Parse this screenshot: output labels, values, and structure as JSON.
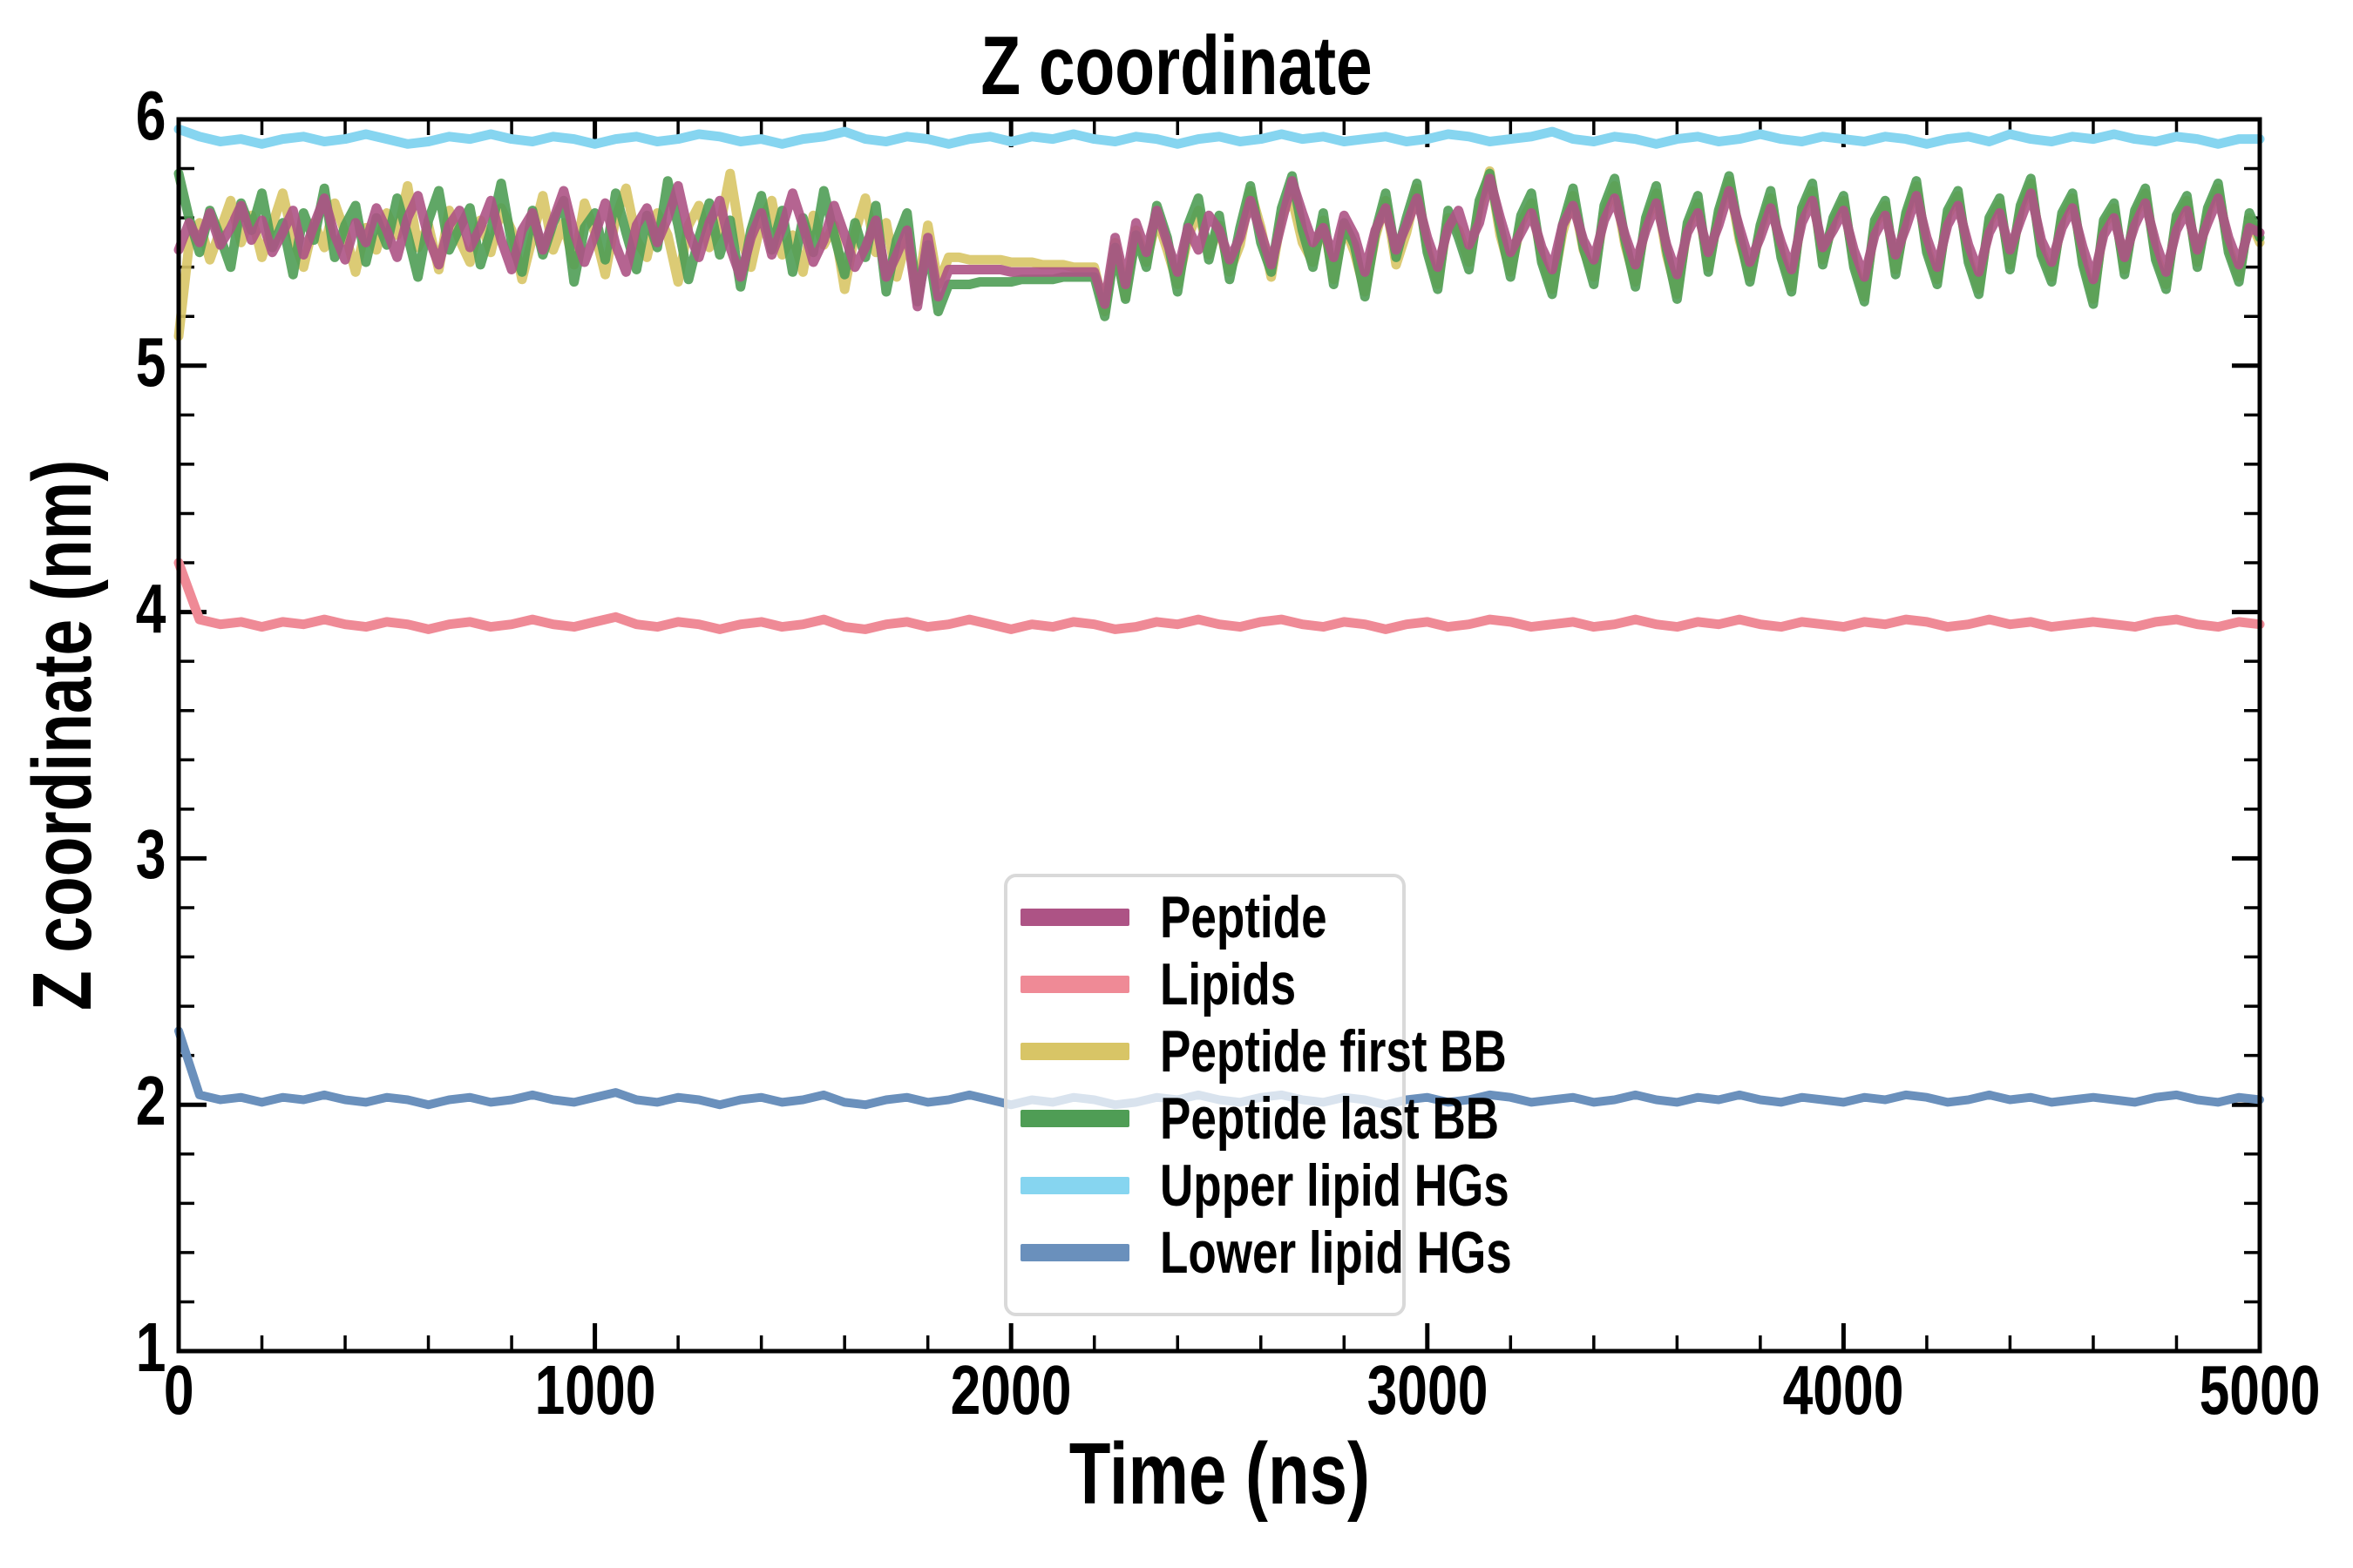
{
  "chart_data": {
    "type": "line",
    "title": "Z coordinate",
    "xlabel": "Time (ns)",
    "ylabel": "Z coordinate (nm)",
    "xlim": [
      0,
      5000
    ],
    "ylim": [
      1,
      6
    ],
    "grid": false,
    "tick_direction": "in",
    "x_major_ticks": [
      0,
      1000,
      2000,
      3000,
      4000,
      5000
    ],
    "x_tick_labels": [
      "0",
      "1000",
      "2000",
      "3000",
      "4000",
      "5000"
    ],
    "x_minor_step": 200,
    "y_major_ticks": [
      1,
      2,
      3,
      4,
      5,
      6
    ],
    "y_tick_labels": [
      "1",
      "2",
      "3",
      "4",
      "5",
      "6"
    ],
    "y_minor_step": 0.2,
    "legend_position": "lower center inside plot",
    "legend_border_color": "#d9d9d9",
    "legend_background": "rgba(255,255,255,0.75)",
    "axis_color": "#000000",
    "series": [
      {
        "name": "Peptide",
        "color": "#AD5385",
        "width": 11,
        "opacity": 0.9,
        "z": 6,
        "x_start": 0,
        "x_step": 25,
        "values": [
          5.47,
          5.58,
          5.5,
          5.62,
          5.49,
          5.56,
          5.65,
          5.51,
          5.59,
          5.46,
          5.54,
          5.63,
          5.45,
          5.57,
          5.68,
          5.53,
          5.43,
          5.58,
          5.5,
          5.64,
          5.55,
          5.44,
          5.6,
          5.69,
          5.52,
          5.41,
          5.57,
          5.63,
          5.48,
          5.56,
          5.67,
          5.51,
          5.39,
          5.55,
          5.62,
          5.47,
          5.59,
          5.71,
          5.54,
          5.42,
          5.53,
          5.66,
          5.49,
          5.38,
          5.57,
          5.64,
          5.5,
          5.6,
          5.73,
          5.54,
          5.44,
          5.58,
          5.67,
          5.48,
          5.36,
          5.52,
          5.62,
          5.45,
          5.56,
          5.7,
          5.57,
          5.42,
          5.51,
          5.65,
          5.53,
          5.4,
          5.48,
          5.59,
          5.36,
          5.45,
          5.55,
          5.24,
          5.52,
          5.28,
          5.39,
          5.39,
          5.39,
          5.39,
          5.39,
          5.39,
          5.38,
          5.38,
          5.38,
          5.38,
          5.38,
          5.38,
          5.38,
          5.38,
          5.38,
          5.25,
          5.52,
          5.33,
          5.58,
          5.46,
          5.63,
          5.5,
          5.38,
          5.56,
          5.47,
          5.61,
          5.55,
          5.43,
          5.52,
          5.67,
          5.54,
          5.41,
          5.58,
          5.75,
          5.62,
          5.5,
          5.56,
          5.44,
          5.61,
          5.53,
          5.38,
          5.55,
          5.64,
          5.47,
          5.57,
          5.68,
          5.52,
          5.4,
          5.56,
          5.63,
          5.49,
          5.58,
          5.76,
          5.6,
          5.46,
          5.54,
          5.62,
          5.48,
          5.39,
          5.57,
          5.65,
          5.51,
          5.43,
          5.59,
          5.68,
          5.53,
          5.41,
          5.55,
          5.66,
          5.49,
          5.37,
          5.54,
          5.62,
          5.46,
          5.57,
          5.71,
          5.56,
          5.42,
          5.52,
          5.64,
          5.5,
          5.39,
          5.58,
          5.67,
          5.48,
          5.55,
          5.63,
          5.47,
          5.36,
          5.53,
          5.61,
          5.45,
          5.56,
          5.69,
          5.52,
          5.4,
          5.57,
          5.65,
          5.49,
          5.38,
          5.54,
          5.62,
          5.47,
          5.59,
          5.7,
          5.51,
          5.42,
          5.56,
          5.64,
          5.48,
          5.35,
          5.53,
          5.6,
          5.44,
          5.57,
          5.66,
          5.5,
          5.38,
          5.55,
          5.63,
          5.47,
          5.58,
          5.68,
          5.52,
          5.41,
          5.56,
          5.54
        ]
      },
      {
        "name": "Lipids",
        "color": "#EF8A96",
        "width": 11,
        "opacity": 1,
        "z": 3,
        "x_start": 0,
        "x_step": 50,
        "values": [
          4.2,
          3.97,
          3.95,
          3.96,
          3.94,
          3.96,
          3.95,
          3.97,
          3.95,
          3.94,
          3.96,
          3.95,
          3.93,
          3.95,
          3.96,
          3.94,
          3.95,
          3.97,
          3.95,
          3.94,
          3.96,
          3.98,
          3.95,
          3.94,
          3.96,
          3.95,
          3.93,
          3.95,
          3.96,
          3.94,
          3.95,
          3.97,
          3.94,
          3.93,
          3.95,
          3.96,
          3.94,
          3.95,
          3.97,
          3.95,
          3.93,
          3.95,
          3.94,
          3.96,
          3.95,
          3.93,
          3.94,
          3.96,
          3.95,
          3.97,
          3.95,
          3.94,
          3.96,
          3.97,
          3.95,
          3.94,
          3.96,
          3.95,
          3.93,
          3.95,
          3.96,
          3.94,
          3.95,
          3.97,
          3.96,
          3.94,
          3.95,
          3.96,
          3.94,
          3.95,
          3.97,
          3.95,
          3.94,
          3.96,
          3.95,
          3.97,
          3.95,
          3.94,
          3.96,
          3.95,
          3.94,
          3.96,
          3.95,
          3.97,
          3.96,
          3.94,
          3.95,
          3.97,
          3.95,
          3.96,
          3.94,
          3.95,
          3.96,
          3.95,
          3.94,
          3.96,
          3.97,
          3.95,
          3.94,
          3.96,
          3.95
        ]
      },
      {
        "name": "Peptide first BB",
        "color": "#D8C566",
        "width": 11,
        "opacity": 0.9,
        "z": 4,
        "x_start": 0,
        "x_step": 25,
        "values": [
          5.12,
          5.49,
          5.58,
          5.43,
          5.55,
          5.67,
          5.5,
          5.61,
          5.44,
          5.57,
          5.7,
          5.52,
          5.4,
          5.58,
          5.48,
          5.66,
          5.54,
          5.38,
          5.56,
          5.47,
          5.62,
          5.53,
          5.73,
          5.48,
          5.57,
          5.39,
          5.63,
          5.51,
          5.42,
          5.59,
          5.46,
          5.64,
          5.55,
          5.35,
          5.52,
          5.69,
          5.47,
          5.58,
          5.41,
          5.66,
          5.54,
          5.37,
          5.6,
          5.72,
          5.51,
          5.44,
          5.62,
          5.53,
          5.34,
          5.57,
          5.65,
          5.48,
          5.56,
          5.78,
          5.52,
          5.4,
          5.59,
          5.67,
          5.45,
          5.53,
          5.38,
          5.61,
          5.49,
          5.57,
          5.31,
          5.54,
          5.68,
          5.46,
          5.58,
          5.36,
          5.52,
          5.3,
          5.57,
          5.33,
          5.44,
          5.44,
          5.43,
          5.43,
          5.43,
          5.43,
          5.42,
          5.42,
          5.42,
          5.41,
          5.41,
          5.41,
          5.4,
          5.4,
          5.4,
          5.22,
          5.5,
          5.28,
          5.55,
          5.42,
          5.6,
          5.47,
          5.33,
          5.52,
          5.63,
          5.45,
          5.57,
          5.38,
          5.49,
          5.71,
          5.56,
          5.36,
          5.61,
          5.68,
          5.5,
          5.42,
          5.59,
          5.35,
          5.57,
          5.46,
          5.3,
          5.52,
          5.67,
          5.41,
          5.54,
          5.72,
          5.48,
          5.33,
          5.6,
          5.55,
          5.42,
          5.64,
          5.79,
          5.53,
          5.38,
          5.58,
          5.66,
          5.44,
          5.31,
          5.54,
          5.69,
          5.47,
          5.36,
          5.62,
          5.73,
          5.49,
          5.34,
          5.58,
          5.7,
          5.45,
          5.29,
          5.56,
          5.66,
          5.4,
          5.61,
          5.75,
          5.51,
          5.36,
          5.55,
          5.68,
          5.46,
          5.32,
          5.62,
          5.71,
          5.43,
          5.58,
          5.67,
          5.42,
          5.28,
          5.57,
          5.65,
          5.39,
          5.6,
          5.73,
          5.48,
          5.35,
          5.61,
          5.69,
          5.44,
          5.31,
          5.58,
          5.66,
          5.41,
          5.63,
          5.74,
          5.47,
          5.36,
          5.6,
          5.68,
          5.43,
          5.27,
          5.57,
          5.64,
          5.39,
          5.61,
          5.7,
          5.45,
          5.33,
          5.59,
          5.67,
          5.42,
          5.62,
          5.72,
          5.48,
          5.36,
          5.6,
          5.5
        ]
      },
      {
        "name": "Peptide last BB",
        "color": "#4F9D55",
        "width": 11,
        "opacity": 0.9,
        "z": 5,
        "x_start": 0,
        "x_step": 25,
        "values": [
          5.78,
          5.6,
          5.46,
          5.63,
          5.52,
          5.4,
          5.66,
          5.55,
          5.7,
          5.48,
          5.58,
          5.37,
          5.62,
          5.51,
          5.72,
          5.44,
          5.57,
          5.65,
          5.42,
          5.6,
          5.49,
          5.68,
          5.53,
          5.36,
          5.59,
          5.71,
          5.47,
          5.56,
          5.64,
          5.41,
          5.55,
          5.74,
          5.5,
          5.38,
          5.63,
          5.45,
          5.58,
          5.67,
          5.34,
          5.56,
          5.62,
          5.43,
          5.7,
          5.54,
          5.39,
          5.61,
          5.48,
          5.75,
          5.57,
          5.35,
          5.52,
          5.66,
          5.45,
          5.59,
          5.32,
          5.55,
          5.69,
          5.47,
          5.63,
          5.38,
          5.6,
          5.46,
          5.71,
          5.53,
          5.37,
          5.58,
          5.44,
          5.65,
          5.3,
          5.51,
          5.62,
          5.26,
          5.49,
          5.22,
          5.33,
          5.33,
          5.33,
          5.34,
          5.34,
          5.34,
          5.34,
          5.35,
          5.35,
          5.35,
          5.35,
          5.36,
          5.36,
          5.36,
          5.36,
          5.2,
          5.48,
          5.27,
          5.53,
          5.4,
          5.65,
          5.52,
          5.3,
          5.57,
          5.68,
          5.43,
          5.61,
          5.35,
          5.56,
          5.73,
          5.5,
          5.38,
          5.64,
          5.77,
          5.55,
          5.4,
          5.62,
          5.33,
          5.58,
          5.49,
          5.28,
          5.54,
          5.7,
          5.44,
          5.6,
          5.74,
          5.46,
          5.31,
          5.63,
          5.52,
          5.39,
          5.67,
          5.78,
          5.56,
          5.36,
          5.61,
          5.7,
          5.42,
          5.29,
          5.57,
          5.72,
          5.48,
          5.33,
          5.65,
          5.76,
          5.51,
          5.32,
          5.6,
          5.73,
          5.47,
          5.27,
          5.58,
          5.69,
          5.38,
          5.63,
          5.77,
          5.53,
          5.34,
          5.57,
          5.71,
          5.44,
          5.3,
          5.64,
          5.74,
          5.41,
          5.6,
          5.69,
          5.4,
          5.26,
          5.59,
          5.67,
          5.37,
          5.62,
          5.75,
          5.46,
          5.33,
          5.63,
          5.71,
          5.42,
          5.29,
          5.6,
          5.68,
          5.39,
          5.65,
          5.76,
          5.45,
          5.34,
          5.62,
          5.7,
          5.41,
          5.25,
          5.59,
          5.66,
          5.37,
          5.63,
          5.72,
          5.43,
          5.31,
          5.61,
          5.69,
          5.4,
          5.64,
          5.74,
          5.46,
          5.34,
          5.62,
          5.52
        ]
      },
      {
        "name": "Upper lipid HGs",
        "color": "#86D5F0",
        "width": 11,
        "opacity": 1,
        "z": 1,
        "x_start": 0,
        "x_step": 50,
        "values": [
          5.96,
          5.93,
          5.91,
          5.92,
          5.9,
          5.92,
          5.93,
          5.91,
          5.92,
          5.94,
          5.92,
          5.9,
          5.91,
          5.93,
          5.92,
          5.94,
          5.92,
          5.91,
          5.93,
          5.92,
          5.9,
          5.92,
          5.93,
          5.91,
          5.92,
          5.94,
          5.93,
          5.91,
          5.92,
          5.9,
          5.92,
          5.93,
          5.95,
          5.92,
          5.91,
          5.93,
          5.92,
          5.9,
          5.92,
          5.93,
          5.91,
          5.93,
          5.92,
          5.94,
          5.92,
          5.91,
          5.93,
          5.92,
          5.9,
          5.92,
          5.93,
          5.91,
          5.92,
          5.94,
          5.92,
          5.93,
          5.91,
          5.92,
          5.93,
          5.91,
          5.92,
          5.94,
          5.93,
          5.91,
          5.92,
          5.93,
          5.95,
          5.92,
          5.91,
          5.93,
          5.92,
          5.9,
          5.92,
          5.93,
          5.91,
          5.92,
          5.94,
          5.92,
          5.91,
          5.93,
          5.92,
          5.91,
          5.93,
          5.92,
          5.9,
          5.92,
          5.93,
          5.91,
          5.94,
          5.92,
          5.91,
          5.93,
          5.92,
          5.94,
          5.92,
          5.91,
          5.93,
          5.92,
          5.9,
          5.92,
          5.92
        ]
      },
      {
        "name": "Lower lipid HGs",
        "color": "#6A90BC",
        "width": 10,
        "opacity": 1,
        "z": 2,
        "x_start": 0,
        "x_step": 50,
        "values": [
          2.3,
          2.04,
          2.02,
          2.03,
          2.01,
          2.03,
          2.02,
          2.04,
          2.02,
          2.01,
          2.03,
          2.02,
          2.0,
          2.02,
          2.03,
          2.01,
          2.02,
          2.04,
          2.02,
          2.01,
          2.03,
          2.05,
          2.02,
          2.01,
          2.03,
          2.02,
          2.0,
          2.02,
          2.03,
          2.01,
          2.02,
          2.04,
          2.01,
          2.0,
          2.02,
          2.03,
          2.01,
          2.02,
          2.04,
          2.02,
          2.0,
          2.02,
          2.01,
          2.03,
          2.02,
          2.0,
          2.01,
          2.03,
          2.02,
          2.04,
          2.02,
          2.01,
          2.03,
          2.04,
          2.02,
          2.01,
          2.03,
          2.02,
          2.0,
          2.02,
          2.03,
          2.01,
          2.02,
          2.04,
          2.03,
          2.01,
          2.02,
          2.03,
          2.01,
          2.02,
          2.04,
          2.02,
          2.01,
          2.03,
          2.02,
          2.04,
          2.02,
          2.01,
          2.03,
          2.02,
          2.01,
          2.03,
          2.02,
          2.04,
          2.03,
          2.01,
          2.02,
          2.04,
          2.02,
          2.03,
          2.01,
          2.02,
          2.03,
          2.02,
          2.01,
          2.03,
          2.04,
          2.02,
          2.01,
          2.03,
          2.02
        ]
      }
    ]
  }
}
